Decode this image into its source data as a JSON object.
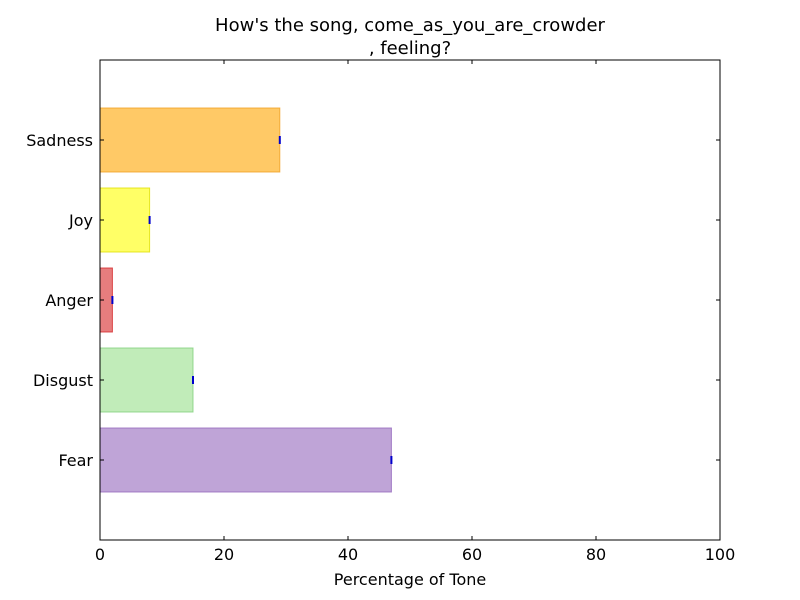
{
  "chart_data": {
    "type": "bar",
    "orientation": "horizontal",
    "title_lines": [
      "How's the song, come_as_you_are_crowder",
      ", feeling?"
    ],
    "xlabel": "Percentage of Tone",
    "ylabel": "",
    "xlim": [
      0,
      100
    ],
    "xticks": [
      0,
      20,
      40,
      60,
      80,
      100
    ],
    "xtick_labels": [
      "0",
      "20",
      "40",
      "60",
      "80",
      "100"
    ],
    "grid": false,
    "categories": [
      "Fear",
      "Disgust",
      "Anger",
      "Joy",
      "Sadness"
    ],
    "values": [
      47,
      15,
      2,
      8,
      29
    ],
    "colors": [
      "#9467bd",
      "#98df8a",
      "#d62728",
      "#ffff00",
      "#ffa500"
    ],
    "edge_colors": [
      "#9467bd",
      "#7fd07a",
      "#d62728",
      "#e0e000",
      "#f0a020"
    ],
    "bar_opacity": 0.6,
    "error_marker_color": "#0000cc"
  }
}
